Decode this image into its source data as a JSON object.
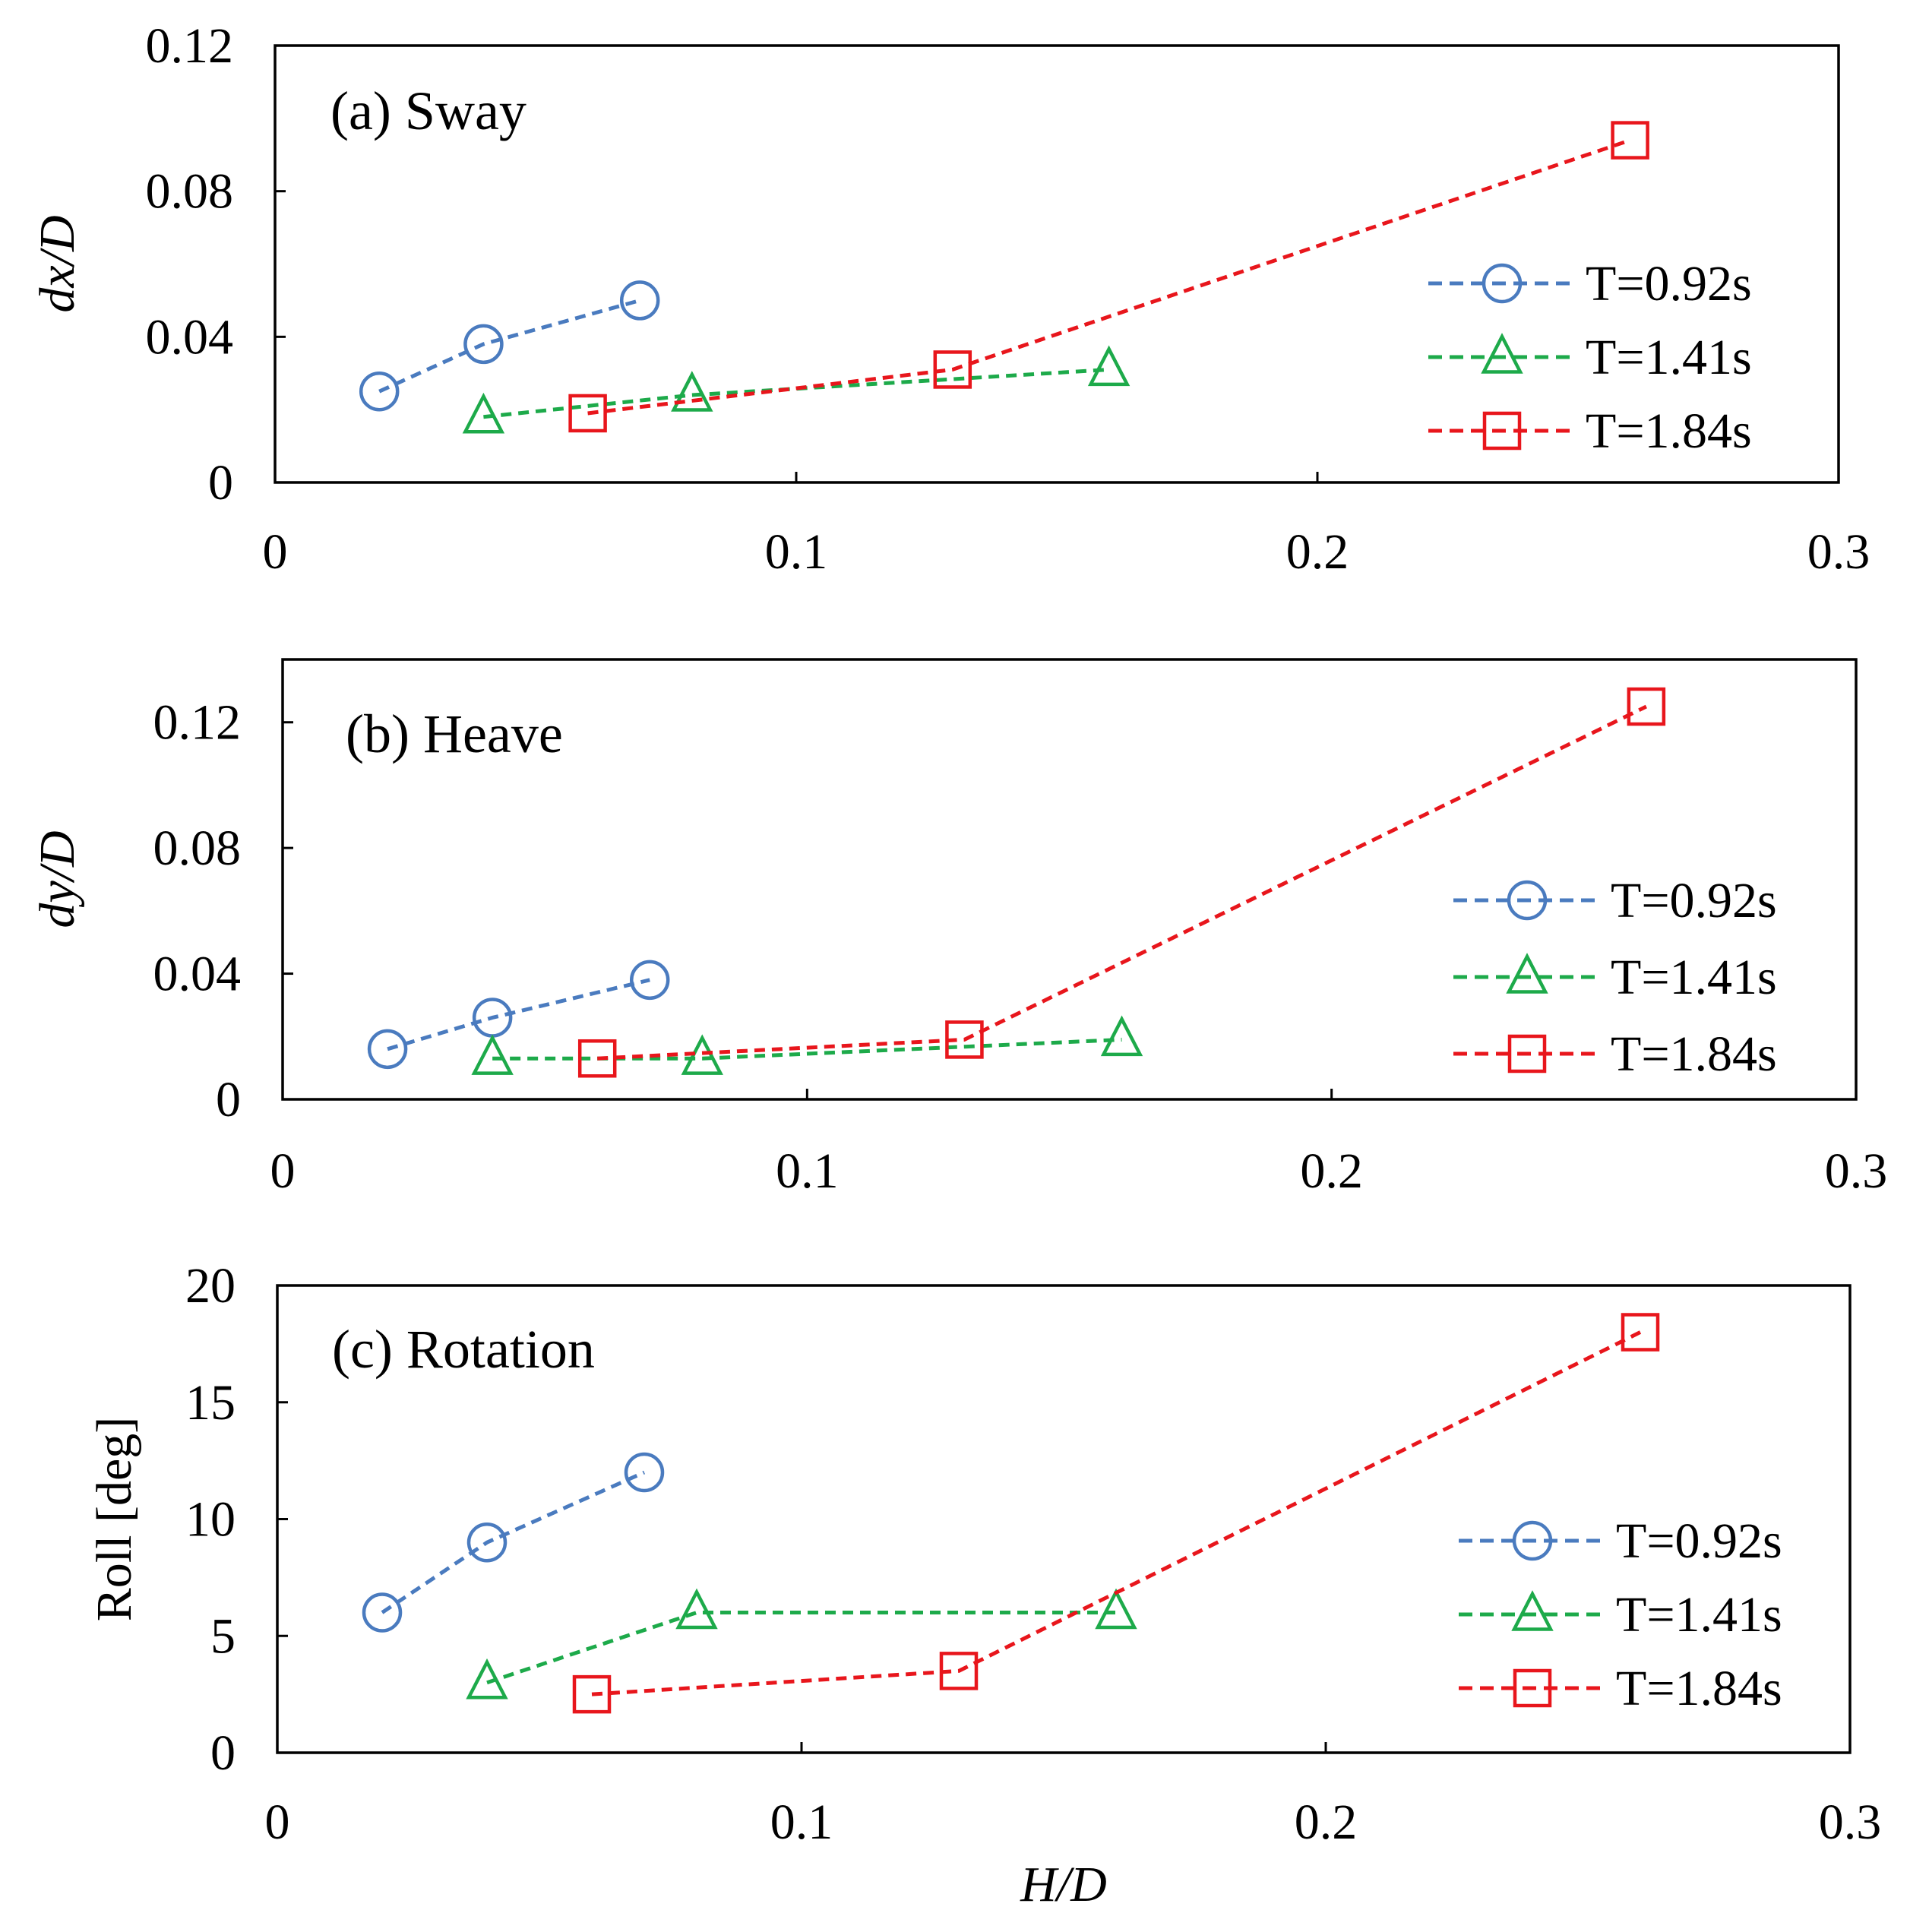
{
  "figure_xlabel": "H/D",
  "chart_data": [
    {
      "type": "line",
      "title": "(a) Sway",
      "xlabel": "",
      "ylabel": "dx/D",
      "ylabel_italic": true,
      "xlim": [
        0,
        0.3
      ],
      "ylim": [
        0,
        0.12
      ],
      "xticks": [
        0,
        0.1,
        0.2,
        0.3
      ],
      "xtick_labels": [
        "0",
        "0.1",
        "0.2",
        "0.3"
      ],
      "yticks": [
        0,
        0.04,
        0.08,
        0.12
      ],
      "ytick_labels": [
        "0",
        "0.04",
        "0.08",
        "0.12"
      ],
      "grid": false,
      "legend": "center-right",
      "series": [
        {
          "name": "T=0.92s",
          "marker": "circle",
          "color": "#4a7bbf",
          "x": [
            0.02,
            0.04,
            0.07
          ],
          "y": [
            0.025,
            0.038,
            0.05
          ]
        },
        {
          "name": "T=1.41s",
          "marker": "triangle",
          "color": "#1daa4a",
          "x": [
            0.04,
            0.08,
            0.16
          ],
          "y": [
            0.018,
            0.024,
            0.031
          ]
        },
        {
          "name": "T=1.84s",
          "marker": "square",
          "color": "#e8161c",
          "x": [
            0.06,
            0.13,
            0.26
          ],
          "y": [
            0.019,
            0.031,
            0.094
          ]
        }
      ]
    },
    {
      "type": "line",
      "title": "(b) Heave",
      "xlabel": "",
      "ylabel": "dy/D",
      "ylabel_italic": true,
      "xlim": [
        0,
        0.3
      ],
      "ylim": [
        0,
        0.14
      ],
      "xticks": [
        0,
        0.1,
        0.2,
        0.3
      ],
      "xtick_labels": [
        "0",
        "0.1",
        "0.2",
        "0.3"
      ],
      "yticks": [
        0,
        0.04,
        0.08,
        0.12
      ],
      "ytick_labels": [
        "0",
        "0.04",
        "0.08",
        "0.12"
      ],
      "grid": false,
      "legend": "center-right",
      "series": [
        {
          "name": "T=0.92s",
          "marker": "circle",
          "color": "#4a7bbf",
          "x": [
            0.02,
            0.04,
            0.07
          ],
          "y": [
            0.016,
            0.026,
            0.038
          ]
        },
        {
          "name": "T=1.41s",
          "marker": "triangle",
          "color": "#1daa4a",
          "x": [
            0.04,
            0.08,
            0.16
          ],
          "y": [
            0.013,
            0.013,
            0.019
          ]
        },
        {
          "name": "T=1.84s",
          "marker": "square",
          "color": "#e8161c",
          "x": [
            0.06,
            0.13,
            0.26
          ],
          "y": [
            0.013,
            0.019,
            0.125
          ]
        }
      ]
    },
    {
      "type": "line",
      "title": "(c) Rotation",
      "xlabel": "H/D",
      "ylabel": "Roll [deg]",
      "ylabel_italic": false,
      "xlim": [
        0,
        0.3
      ],
      "ylim": [
        0,
        20
      ],
      "xticks": [
        0,
        0.1,
        0.2,
        0.3
      ],
      "xtick_labels": [
        "0",
        "0.1",
        "0.2",
        "0.3"
      ],
      "yticks": [
        0,
        5,
        10,
        15,
        20
      ],
      "ytick_labels": [
        "0",
        "5",
        "10",
        "15",
        "20"
      ],
      "grid": false,
      "legend": "center-right",
      "series": [
        {
          "name": "T=0.92s",
          "marker": "circle",
          "color": "#4a7bbf",
          "x": [
            0.02,
            0.04,
            0.07
          ],
          "y": [
            6,
            9,
            12
          ]
        },
        {
          "name": "T=1.41s",
          "marker": "triangle",
          "color": "#1daa4a",
          "x": [
            0.04,
            0.08,
            0.16
          ],
          "y": [
            3,
            6,
            6
          ]
        },
        {
          "name": "T=1.84s",
          "marker": "square",
          "color": "#e8161c",
          "x": [
            0.06,
            0.13,
            0.26
          ],
          "y": [
            2.5,
            3.5,
            18
          ]
        }
      ]
    }
  ]
}
